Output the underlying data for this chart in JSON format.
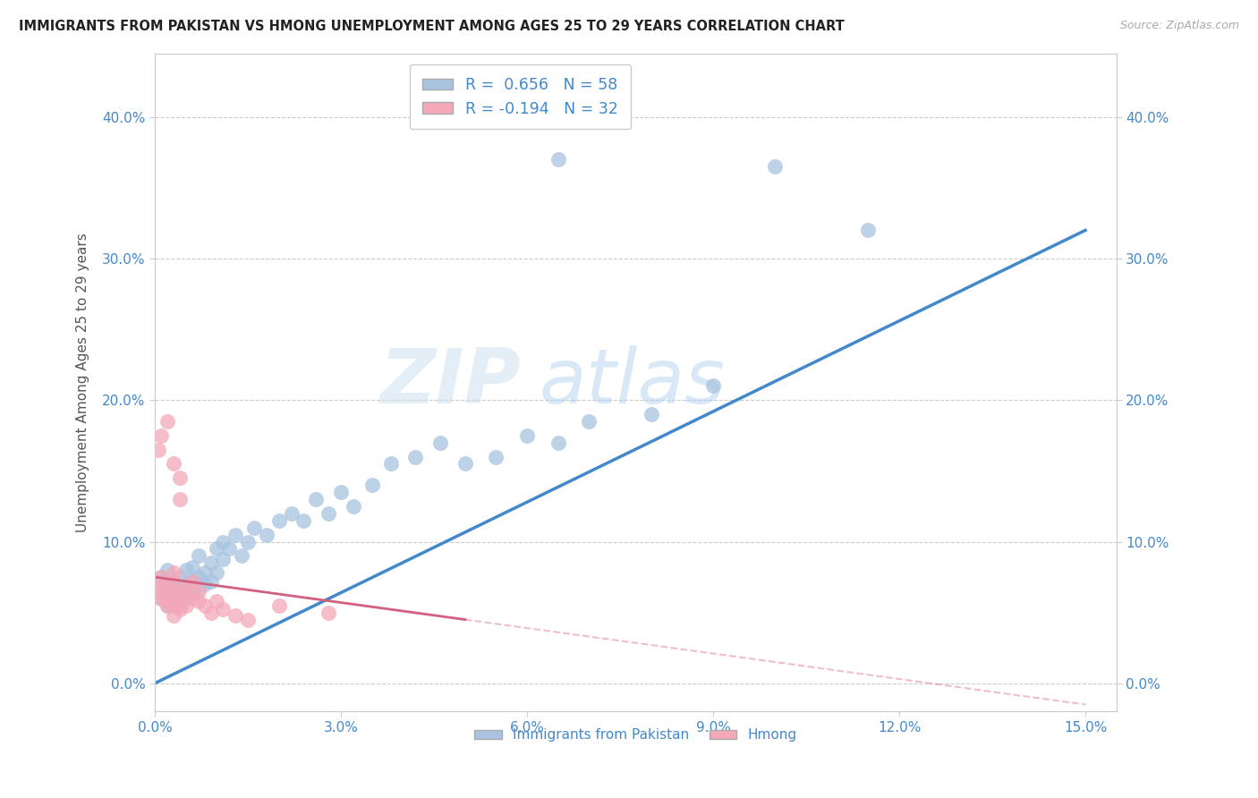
{
  "title": "IMMIGRANTS FROM PAKISTAN VS HMONG UNEMPLOYMENT AMONG AGES 25 TO 29 YEARS CORRELATION CHART",
  "source": "Source: ZipAtlas.com",
  "ylabel": "Unemployment Among Ages 25 to 29 years",
  "xlim": [
    0.0,
    0.155
  ],
  "ylim": [
    -0.02,
    0.445
  ],
  "xticks": [
    0.0,
    0.03,
    0.06,
    0.09,
    0.12,
    0.15
  ],
  "yticks": [
    0.0,
    0.1,
    0.2,
    0.3,
    0.4
  ],
  "pakistan_R": 0.656,
  "pakistan_N": 58,
  "hmong_R": -0.194,
  "hmong_N": 32,
  "pakistan_color": "#a8c4e0",
  "hmong_color": "#f4a8b8",
  "pakistan_line_color": "#4488cc",
  "hmong_line_color": "#d46080",
  "legend_label_pakistan": "Immigrants from Pakistan",
  "legend_label_hmong": "Hmong",
  "pakistan_x": [
    0.001,
    0.001,
    0.002,
    0.002,
    0.002,
    0.003,
    0.003,
    0.003,
    0.003,
    0.003,
    0.004,
    0.004,
    0.004,
    0.004,
    0.005,
    0.005,
    0.005,
    0.005,
    0.006,
    0.006,
    0.006,
    0.007,
    0.007,
    0.007,
    0.008,
    0.008,
    0.009,
    0.009,
    0.01,
    0.01,
    0.011,
    0.011,
    0.012,
    0.013,
    0.014,
    0.015,
    0.016,
    0.018,
    0.02,
    0.022,
    0.024,
    0.026,
    0.028,
    0.03,
    0.032,
    0.035,
    0.038,
    0.042,
    0.046,
    0.05,
    0.055,
    0.06,
    0.065,
    0.07,
    0.08,
    0.09,
    0.1,
    0.115
  ],
  "pakistan_y": [
    0.06,
    0.075,
    0.055,
    0.068,
    0.08,
    0.058,
    0.065,
    0.072,
    0.06,
    0.07,
    0.055,
    0.062,
    0.068,
    0.075,
    0.06,
    0.065,
    0.07,
    0.08,
    0.065,
    0.072,
    0.082,
    0.068,
    0.075,
    0.09,
    0.07,
    0.078,
    0.072,
    0.085,
    0.078,
    0.095,
    0.088,
    0.1,
    0.095,
    0.105,
    0.09,
    0.1,
    0.11,
    0.105,
    0.115,
    0.12,
    0.115,
    0.13,
    0.12,
    0.135,
    0.125,
    0.14,
    0.155,
    0.16,
    0.17,
    0.155,
    0.16,
    0.175,
    0.17,
    0.185,
    0.19,
    0.21,
    0.365,
    0.32
  ],
  "pakistan_outlier_x": [
    0.065
  ],
  "pakistan_outlier_y": [
    0.37
  ],
  "hmong_x": [
    0.0005,
    0.001,
    0.001,
    0.001,
    0.002,
    0.002,
    0.002,
    0.002,
    0.003,
    0.003,
    0.003,
    0.003,
    0.003,
    0.003,
    0.004,
    0.004,
    0.004,
    0.005,
    0.005,
    0.005,
    0.006,
    0.006,
    0.007,
    0.007,
    0.008,
    0.009,
    0.01,
    0.011,
    0.013,
    0.015,
    0.02,
    0.028
  ],
  "hmong_y": [
    0.065,
    0.06,
    0.068,
    0.075,
    0.055,
    0.058,
    0.062,
    0.07,
    0.048,
    0.055,
    0.06,
    0.065,
    0.072,
    0.078,
    0.052,
    0.058,
    0.065,
    0.055,
    0.062,
    0.068,
    0.06,
    0.072,
    0.058,
    0.065,
    0.055,
    0.05,
    0.058,
    0.052,
    0.048,
    0.045,
    0.055,
    0.05
  ],
  "hmong_outlier_x": [
    0.0005,
    0.001,
    0.002,
    0.003,
    0.004,
    0.004
  ],
  "hmong_outlier_y": [
    0.165,
    0.175,
    0.185,
    0.155,
    0.145,
    0.13
  ],
  "pak_line_x0": 0.0,
  "pak_line_y0": 0.0,
  "pak_line_x1": 0.15,
  "pak_line_y1": 0.32,
  "hmong_line_x0": 0.0,
  "hmong_line_y0": 0.075,
  "hmong_line_x1": 0.05,
  "hmong_line_y1": 0.045
}
